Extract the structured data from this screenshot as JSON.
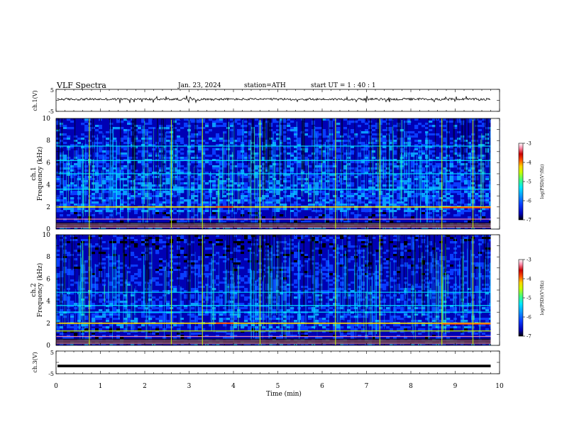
{
  "header": {
    "title": "VLF  Spectra",
    "date": "Jan. 23, 2024",
    "station": "station=ATH",
    "start_ut": "start  UT  =   1 : 40 : 1"
  },
  "chart_data": [
    {
      "type": "line",
      "panel": "ch1-waveform",
      "ylabel": "ch.1(V)",
      "ylim": [
        -5,
        5
      ],
      "yticks": [
        "5",
        "-5"
      ],
      "xlim": [
        0,
        10
      ],
      "trace": {
        "mean": 0.5,
        "noise_amplitude": 0.5,
        "spike_amplitude": 1.6,
        "end_min": 9.8
      }
    },
    {
      "type": "heatmap",
      "panel": "ch1-spectrogram",
      "ylabel": [
        "ch.1",
        "Frequency  (kHz)"
      ],
      "ylim": [
        0,
        10
      ],
      "yticks": [
        "0",
        "2",
        "4",
        "6",
        "8",
        "10"
      ],
      "xlim": [
        0,
        10
      ],
      "colorbar": {
        "label": "log(PSD)(V²/Hz)",
        "ticks": [
          "-3",
          "-4",
          "-5",
          "-6",
          "-7"
        ],
        "range": [
          -7,
          -3
        ]
      },
      "bright_bands_khz": [
        0.2,
        0.45,
        0.9,
        2.0,
        3.6,
        5.0,
        6.2,
        7.5
      ],
      "vertical_flashes_min": [
        0.75,
        2.6,
        3.3,
        4.6,
        6.3,
        7.3,
        8.7,
        9.4
      ]
    },
    {
      "type": "heatmap",
      "panel": "ch2-spectrogram",
      "ylabel": [
        "ch.2",
        "Frequency  (kHz)"
      ],
      "ylim": [
        0,
        10
      ],
      "yticks": [
        "0",
        "2",
        "4",
        "6",
        "8",
        "10"
      ],
      "xlim": [
        0,
        10
      ],
      "colorbar": {
        "label": "log(PSD)(V²/Hz)",
        "ticks": [
          "-3",
          "-4",
          "-5",
          "-6",
          "-7"
        ],
        "range": [
          -7,
          -3
        ]
      },
      "bright_bands_khz": [
        0.3,
        0.8,
        1.3,
        2.0,
        3.0,
        3.6,
        4.8
      ],
      "vertical_flashes_min": [
        0.75,
        2.6,
        3.3,
        4.6,
        6.3,
        7.3,
        8.7,
        9.4
      ]
    },
    {
      "type": "line",
      "panel": "ch3-waveform",
      "ylabel": "ch.3(V)",
      "ylim": [
        -5,
        5
      ],
      "yticks": [
        "5",
        "0",
        "-5"
      ],
      "xlim": [
        0,
        10
      ],
      "trace": {
        "value": -1.6,
        "end_min": 9.8
      }
    }
  ],
  "xaxis": {
    "label": "Time  (min)",
    "ticks": [
      "0",
      "1",
      "2",
      "3",
      "4",
      "5",
      "6",
      "7",
      "8",
      "9",
      "10"
    ]
  },
  "colors": {
    "scale": [
      "#000000",
      "#0000b4",
      "#0a3cff",
      "#0a9cff",
      "#00e6ff",
      "#40ff80",
      "#c8ff00",
      "#ffd200",
      "#ff5000",
      "#c80000",
      "#ff90b0",
      "#ffffff"
    ]
  }
}
